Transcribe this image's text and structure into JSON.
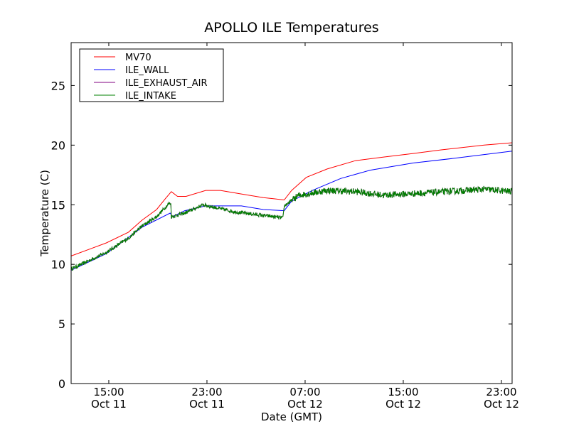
{
  "chart_data": {
    "type": "line",
    "title": "APOLLO ILE Temperatures",
    "xlabel": "Date (GMT)",
    "ylabel": "Temperature (C)",
    "x_units": "hours since Oct 11 00:00 GMT",
    "xlim": [
      11.93,
      47.87
    ],
    "ylim": [
      0,
      28.6
    ],
    "yticks": [
      0,
      5,
      10,
      15,
      20,
      25
    ],
    "xticks": [
      {
        "value": 15,
        "time": "15:00",
        "date": "Oct 11"
      },
      {
        "value": 23,
        "time": "23:00",
        "date": "Oct 11"
      },
      {
        "value": 31,
        "time": "07:00",
        "date": "Oct 12"
      },
      {
        "value": 39,
        "time": "15:00",
        "date": "Oct 12"
      },
      {
        "value": 47,
        "time": "23:00",
        "date": "Oct 12"
      }
    ],
    "grid": false,
    "legend_position": "top-left",
    "series": [
      {
        "name": "MV70",
        "color": "#ff0000",
        "noisy": false,
        "points": [
          [
            11.93,
            10.7
          ],
          [
            14.8,
            11.8
          ],
          [
            16.6,
            12.7
          ],
          [
            17.7,
            13.7
          ],
          [
            18.9,
            14.6
          ],
          [
            19.6,
            15.5
          ],
          [
            20.1,
            16.1
          ],
          [
            20.6,
            15.7
          ],
          [
            21.3,
            15.7
          ],
          [
            22.9,
            16.2
          ],
          [
            24.1,
            16.2
          ],
          [
            25.8,
            15.9
          ],
          [
            27.6,
            15.6
          ],
          [
            29.3,
            15.4
          ],
          [
            29.9,
            16.2
          ],
          [
            31.1,
            17.3
          ],
          [
            32.8,
            18.0
          ],
          [
            35.1,
            18.7
          ],
          [
            37.4,
            19.0
          ],
          [
            39.8,
            19.3
          ],
          [
            42.1,
            19.6
          ],
          [
            45.6,
            20.0
          ],
          [
            47.87,
            20.2
          ]
        ]
      },
      {
        "name": "ILE_WALL",
        "color": "#0000ff",
        "noisy": false,
        "points": [
          [
            11.93,
            9.5
          ],
          [
            14.8,
            10.9
          ],
          [
            17.7,
            13.1
          ],
          [
            20.0,
            14.3
          ],
          [
            20.2,
            14.0
          ],
          [
            21.2,
            14.5
          ],
          [
            22.9,
            14.9
          ],
          [
            25.8,
            14.9
          ],
          [
            27.6,
            14.6
          ],
          [
            29.3,
            14.5
          ],
          [
            29.9,
            15.3
          ],
          [
            31.6,
            16.2
          ],
          [
            33.9,
            17.2
          ],
          [
            36.3,
            17.9
          ],
          [
            39.8,
            18.5
          ],
          [
            43.2,
            18.9
          ],
          [
            47.87,
            19.5
          ]
        ]
      },
      {
        "name": "ILE_EXHAUST_AIR",
        "color": "#800080",
        "noisy": true,
        "points": [
          [
            11.93,
            9.6
          ],
          [
            14.8,
            11.0
          ],
          [
            16.6,
            12.2
          ],
          [
            17.7,
            13.2
          ],
          [
            18.9,
            14.0
          ],
          [
            19.9,
            15.1
          ],
          [
            20.05,
            15.1
          ],
          [
            20.1,
            14.0
          ],
          [
            21.2,
            14.3
          ],
          [
            22.7,
            15.0
          ],
          [
            23.5,
            14.8
          ],
          [
            25.3,
            14.4
          ],
          [
            27.6,
            14.1
          ],
          [
            29.2,
            13.9
          ],
          [
            29.3,
            14.9
          ],
          [
            30.5,
            15.8
          ],
          [
            32.8,
            16.2
          ],
          [
            35.1,
            16.1
          ],
          [
            37.4,
            15.8
          ],
          [
            40.9,
            16.0
          ],
          [
            45.6,
            16.3
          ],
          [
            47.87,
            16.1
          ]
        ]
      },
      {
        "name": "ILE_INTAKE",
        "color": "#008000",
        "noisy": true,
        "points": [
          [
            11.93,
            9.6
          ],
          [
            14.8,
            11.0
          ],
          [
            16.6,
            12.2
          ],
          [
            17.7,
            13.2
          ],
          [
            18.9,
            14.0
          ],
          [
            19.9,
            15.1
          ],
          [
            20.05,
            15.1
          ],
          [
            20.1,
            14.0
          ],
          [
            21.2,
            14.3
          ],
          [
            22.7,
            15.0
          ],
          [
            23.5,
            14.8
          ],
          [
            25.3,
            14.4
          ],
          [
            27.6,
            14.1
          ],
          [
            29.2,
            13.9
          ],
          [
            29.3,
            14.9
          ],
          [
            30.5,
            15.8
          ],
          [
            32.8,
            16.2
          ],
          [
            35.1,
            16.1
          ],
          [
            37.4,
            15.8
          ],
          [
            40.9,
            16.0
          ],
          [
            45.6,
            16.3
          ],
          [
            47.87,
            16.1
          ]
        ]
      }
    ]
  }
}
